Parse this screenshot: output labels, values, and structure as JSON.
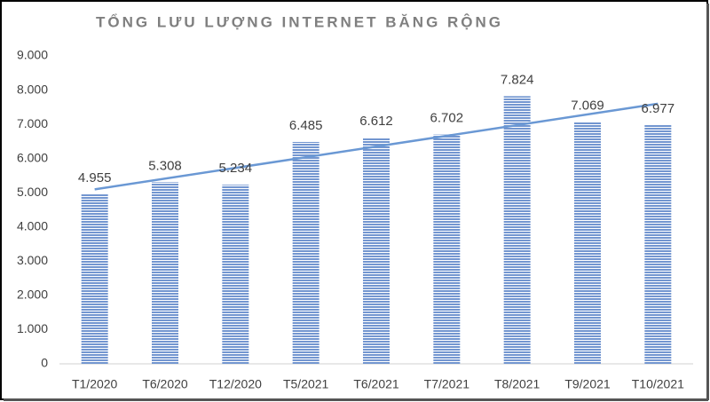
{
  "chart_data": {
    "type": "bar",
    "title": "TỔNG LƯU LƯỢNG INTERNET BĂNG RỘNG",
    "categories": [
      "T1/2020",
      "T6/2020",
      "T12/2020",
      "T5/2021",
      "T6/2021",
      "T7/2021",
      "T8/2021",
      "T9/2021",
      "T10/2021"
    ],
    "values": [
      4955,
      5308,
      5234,
      6485,
      6612,
      6702,
      7824,
      7069,
      6977
    ],
    "value_labels": [
      "4.955",
      "5.308",
      "5.234",
      "6.485",
      "6.612",
      "6.702",
      "7.824",
      "7.069",
      "6.977"
    ],
    "color": "#7396d0",
    "trendline": "linear",
    "trendline_color": "#6a98d4",
    "ylim": [
      0,
      9000
    ],
    "yticks": [
      0,
      {
        "value": 1000,
        "label": "1.000"
      },
      {
        "value": 2000,
        "label": "2.000"
      },
      {
        "value": 3000,
        "label": "3.000"
      },
      {
        "value": 4000,
        "label": "4.000"
      },
      {
        "value": 5000,
        "label": "5.000"
      },
      {
        "value": 6000,
        "label": "6.000"
      },
      {
        "value": 7000,
        "label": "7.000"
      },
      {
        "value": 8000,
        "label": "8.000"
      },
      {
        "value": 9000,
        "label": "9.000"
      }
    ],
    "grid": false
  }
}
